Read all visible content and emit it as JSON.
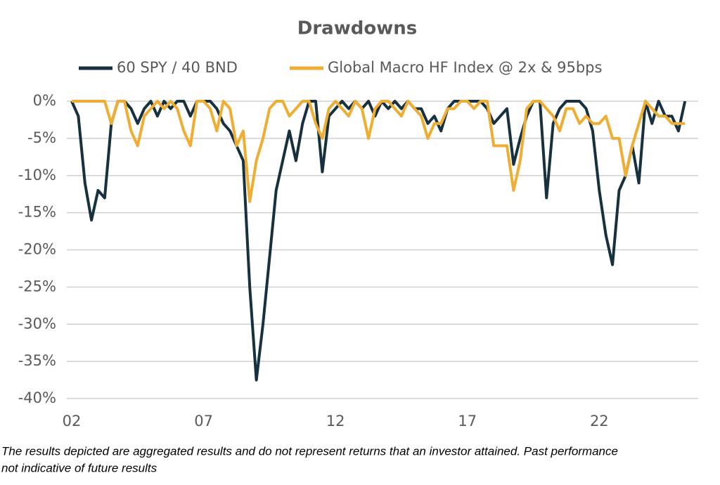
{
  "chart_data": {
    "type": "line",
    "title": "Drawdowns",
    "x": [
      2002,
      2002.25,
      2002.5,
      2002.75,
      2003,
      2003.25,
      2003.5,
      2003.75,
      2004,
      2004.25,
      2004.5,
      2004.75,
      2005,
      2005.25,
      2005.5,
      2005.75,
      2006,
      2006.25,
      2006.5,
      2006.75,
      2007,
      2007.25,
      2007.5,
      2007.75,
      2008,
      2008.25,
      2008.5,
      2008.75,
      2009,
      2009.25,
      2009.5,
      2009.75,
      2010,
      2010.25,
      2010.5,
      2010.75,
      2011,
      2011.25,
      2011.5,
      2011.75,
      2012,
      2012.25,
      2012.5,
      2012.75,
      2013,
      2013.25,
      2013.5,
      2013.75,
      2014,
      2014.25,
      2014.5,
      2014.75,
      2015,
      2015.25,
      2015.5,
      2015.75,
      2016,
      2016.25,
      2016.5,
      2016.75,
      2017,
      2017.25,
      2017.5,
      2017.75,
      2018,
      2018.25,
      2018.5,
      2018.75,
      2019,
      2019.25,
      2019.5,
      2019.75,
      2020,
      2020.25,
      2020.5,
      2020.75,
      2021,
      2021.25,
      2021.5,
      2021.75,
      2022,
      2022.25,
      2022.5,
      2022.75,
      2023,
      2023.25,
      2023.5,
      2023.75,
      2024,
      2024.25,
      2024.5,
      2024.75,
      2025,
      2025.25
    ],
    "series": [
      {
        "name": "60 SPY / 40 BND",
        "color": "#17313f",
        "values": [
          0,
          -2,
          -11,
          -16,
          -12,
          -13,
          -3,
          0,
          0,
          -1,
          -3,
          -1,
          0,
          -2,
          0,
          -1,
          0,
          0,
          -2,
          0,
          0,
          0,
          -1,
          -3,
          -4,
          -6,
          -8,
          -25,
          -37.5,
          -30,
          -21,
          -12,
          -8,
          -4,
          -8,
          -3,
          0,
          0,
          -9.5,
          -2,
          -1,
          0,
          -1,
          0,
          -1,
          0,
          -2,
          0,
          -1,
          0,
          -1,
          0,
          -1,
          -1,
          -3,
          -2,
          -4,
          -1,
          0,
          0,
          0,
          0,
          0,
          -1,
          -3,
          -2,
          -1,
          -8.5,
          -5,
          -2,
          0,
          0,
          -13,
          -3,
          -1,
          0,
          0,
          0,
          -1,
          -4,
          -12,
          -18,
          -22,
          -12,
          -10,
          -6,
          -11,
          0,
          -3,
          0,
          -2,
          -2,
          -4,
          0
        ]
      },
      {
        "name": "Global Macro HF Index @ 2x & 95bps",
        "color": "#f0ad33",
        "values": [
          0,
          0,
          0,
          0,
          0,
          0,
          -3,
          0,
          0,
          -4,
          -6,
          -2,
          -1,
          0,
          -1,
          0,
          -1,
          -4,
          -6,
          0,
          0,
          -1,
          -4,
          0,
          -1,
          -6,
          -4,
          -13.5,
          -8,
          -5,
          -1,
          0,
          0,
          -2,
          -1,
          0,
          0,
          -3,
          -5,
          -1,
          0,
          -1,
          -2,
          0,
          -1,
          -5,
          -1,
          0,
          0,
          -1,
          -2,
          0,
          -1,
          -2,
          -5,
          -3,
          -3,
          -1,
          -1,
          0,
          0,
          -1,
          0,
          0,
          -6,
          -6,
          -6,
          -12,
          -8,
          -1,
          0,
          0,
          -1,
          -2,
          -4,
          -1,
          -1,
          -3,
          -2,
          -3,
          -3,
          -2,
          -5,
          -5,
          -10,
          -6,
          -3,
          0,
          -1,
          -2,
          -2,
          -3,
          -3,
          -3
        ]
      }
    ],
    "xlim": [
      2002,
      2025.75
    ],
    "xticks": [
      {
        "value": 2002,
        "label": "02"
      },
      {
        "value": 2007,
        "label": "07"
      },
      {
        "value": 2012,
        "label": "12"
      },
      {
        "value": 2017,
        "label": "17"
      },
      {
        "value": 2022,
        "label": "22"
      }
    ],
    "ylim": [
      -40,
      0
    ],
    "yticks": [
      {
        "value": 0,
        "label": "0%"
      },
      {
        "value": -5,
        "label": "-5%"
      },
      {
        "value": -10,
        "label": "-10%"
      },
      {
        "value": -15,
        "label": "-15%"
      },
      {
        "value": -20,
        "label": "-20%"
      },
      {
        "value": -25,
        "label": "-25%"
      },
      {
        "value": -30,
        "label": "-30%"
      },
      {
        "value": -35,
        "label": "-35%"
      },
      {
        "value": -40,
        "label": "-40%"
      }
    ],
    "grid": true,
    "legend": "top",
    "note": [
      "The results depicted are aggregated results and do not represent returns that an investor attained. Past performance",
      "not indicative of future results"
    ]
  }
}
